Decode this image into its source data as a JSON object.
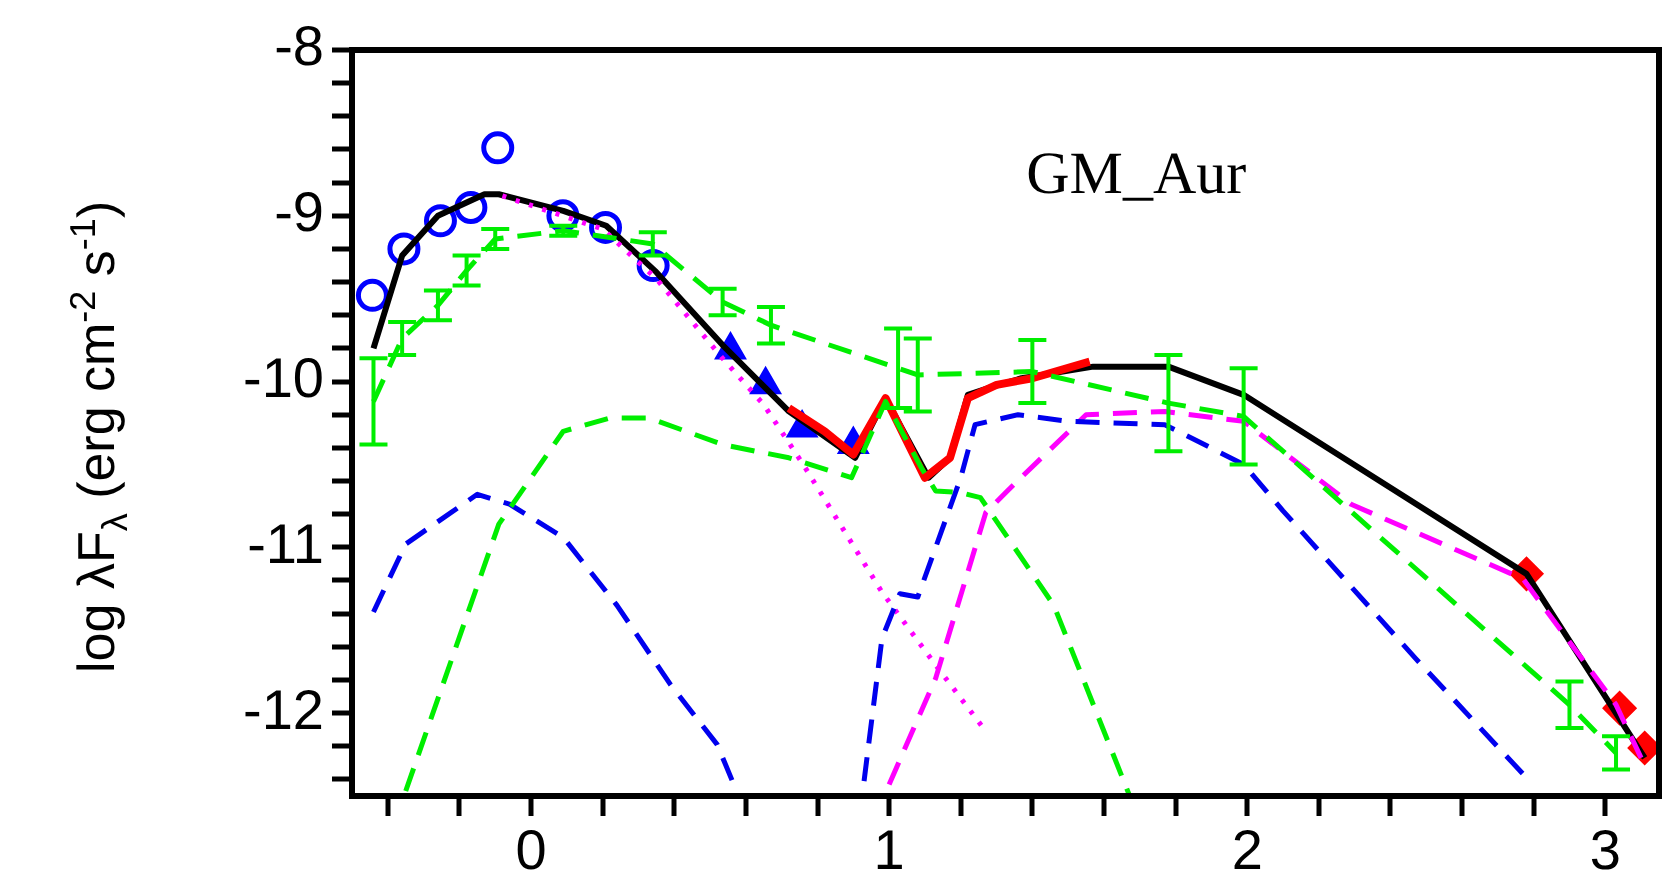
{
  "chart_data": {
    "type": "line",
    "ylabel": "log λF$_{λ}$ (erg cm$^{-2}$ s$^{-1}$)",
    "annotations": [
      "GM_Aur"
    ],
    "legend": false,
    "xlim": [
      -0.5,
      3.15
    ],
    "ylim": [
      -12.5,
      -8
    ],
    "xticks": [
      {
        "value": -0.4,
        "label": null
      },
      {
        "value": -0.2,
        "label": null
      },
      0,
      {
        "value": 0.2,
        "label": null
      },
      {
        "value": 0.4,
        "label": null
      },
      {
        "value": 0.6,
        "label": null
      },
      {
        "value": 0.8,
        "label": null
      },
      1,
      {
        "value": 1.2,
        "label": null
      },
      {
        "value": 1.4,
        "label": null
      },
      {
        "value": 1.6,
        "label": null
      },
      {
        "value": 1.8,
        "label": null
      },
      2,
      {
        "value": 2.2,
        "label": null
      },
      {
        "value": 2.4,
        "label": null
      },
      {
        "value": 2.6,
        "label": null
      },
      {
        "value": 2.8,
        "label": null
      },
      3
    ],
    "yticks": [
      {
        "value": -12.4,
        "label": null
      },
      {
        "value": -12.2,
        "label": null
      },
      -12,
      {
        "value": -11.8,
        "label": null
      },
      {
        "value": -11.6,
        "label": null
      },
      {
        "value": -11.4,
        "label": null
      },
      {
        "value": -11.2,
        "label": null
      },
      -11,
      {
        "value": -10.8,
        "label": null
      },
      {
        "value": -10.6,
        "label": null
      },
      {
        "value": -10.4,
        "label": null
      },
      {
        "value": -10.2,
        "label": null
      },
      -10,
      {
        "value": -9.8,
        "label": null
      },
      {
        "value": -9.6,
        "label": null
      },
      {
        "value": -9.4,
        "label": null
      },
      {
        "value": -9.2,
        "label": null
      },
      -9,
      {
        "value": -8.8,
        "label": null
      },
      {
        "value": -8.6,
        "label": null
      },
      {
        "value": -8.4,
        "label": null
      },
      {
        "value": -8.2,
        "label": null
      },
      -8
    ],
    "series": [
      {
        "color": "#00ee00",
        "line_style": "dashed",
        "x": [
          -0.44,
          -0.36,
          -0.26,
          -0.18,
          -0.1,
          0.09,
          0.34,
          0.535,
          0.67,
          1.025,
          1.08,
          1.4,
          1.78,
          1.99,
          2.9,
          3.03
        ],
        "values": [
          -10.12,
          -9.74,
          -9.54,
          -9.33,
          -9.14,
          -9.09,
          -9.17,
          -9.52,
          -9.66,
          -9.92,
          -9.96,
          -9.94,
          -10.13,
          -10.21,
          -11.95,
          -12.24
        ],
        "errors": [
          0.26,
          0.1,
          0.09,
          0.09,
          0.06,
          0.03,
          0.07,
          0.08,
          0.11,
          0.24,
          0.22,
          0.19,
          0.29,
          0.29,
          0.14,
          0.1
        ]
      },
      {
        "color": "#00ee00",
        "line_style": "dashed",
        "marker": "none",
        "x": [
          -0.35,
          -0.09,
          0.09,
          0.22,
          0.33,
          0.535,
          0.72,
          0.895,
          0.99,
          1.09,
          1.13,
          1.2,
          1.255,
          1.46,
          1.67
        ],
        "values": [
          -12.47,
          -10.86,
          -10.3,
          -10.22,
          -10.22,
          -10.38,
          -10.46,
          -10.58,
          -10.12,
          -10.52,
          -10.66,
          -10.67,
          -10.7,
          -11.35,
          -12.49
        ]
      },
      {
        "color": "#0000ee",
        "line_style": "dashed",
        "marker": "none",
        "x": [
          -0.44,
          -0.35,
          -0.15,
          -0.06,
          0.09,
          0.24,
          0.39,
          0.52,
          0.57
        ],
        "values": [
          -11.39,
          -10.98,
          -10.68,
          -10.74,
          -10.94,
          -11.35,
          -11.83,
          -12.19,
          -12.45
        ]
      },
      {
        "color": "#0000ee",
        "line_style": "dashed",
        "marker": "none",
        "x": [
          0.93,
          0.98,
          1.03,
          1.08,
          1.2,
          1.24,
          1.36,
          1.5,
          1.77,
          1.99,
          2.1,
          2.47,
          2.78
        ],
        "values": [
          -12.41,
          -11.55,
          -11.28,
          -11.3,
          -10.58,
          -10.26,
          -10.2,
          -10.24,
          -10.26,
          -10.5,
          -10.78,
          -11.67,
          -12.39
        ]
      },
      {
        "color": "#ff00ff",
        "line_style": "dotted",
        "marker": "none",
        "x": [
          -0.08,
          0.2,
          0.35,
          0.535,
          0.65,
          0.76,
          0.98,
          1.13,
          1.27
        ],
        "values": [
          -8.88,
          -9.08,
          -9.38,
          -9.86,
          -10.14,
          -10.5,
          -11.27,
          -11.71,
          -12.11
        ]
      },
      {
        "color": "#ff00ff",
        "line_style": "dashed",
        "marker": "none",
        "x": [
          1.0,
          1.13,
          1.27,
          1.33,
          1.55,
          1.77,
          1.99,
          2.29,
          2.77,
          3.03,
          3.1
        ],
        "values": [
          -12.43,
          -11.79,
          -10.79,
          -10.66,
          -10.2,
          -10.18,
          -10.24,
          -10.74,
          -11.19,
          -11.95,
          -12.27
        ]
      },
      {
        "color": "#ff0000",
        "line_style": "solid",
        "marker": "none",
        "x": [
          0.72,
          0.82,
          0.9,
          0.99,
          1.1,
          1.17,
          1.22,
          1.3,
          1.4,
          1.56
        ],
        "values": [
          -10.16,
          -10.3,
          -10.44,
          -10.1,
          -10.58,
          -10.46,
          -10.1,
          -10.02,
          -9.98,
          -9.88
        ]
      },
      {
        "color": "#000000",
        "line_style": "solid",
        "marker": "none",
        "x": [
          -0.44,
          -0.36,
          -0.26,
          -0.13,
          -0.09,
          0.09,
          0.21,
          0.35,
          0.535,
          0.72,
          0.905,
          0.99,
          1.11,
          1.17,
          1.22,
          1.29,
          1.37,
          1.57,
          1.78,
          1.99,
          2.78,
          3.11
        ],
        "values": [
          -9.8,
          -9.24,
          -9.0,
          -8.87,
          -8.87,
          -8.97,
          -9.06,
          -9.34,
          -9.78,
          -10.18,
          -10.46,
          -10.1,
          -10.58,
          -10.46,
          -10.08,
          -10.03,
          -9.98,
          -9.91,
          -9.91,
          -10.08,
          -11.16,
          -12.27
        ]
      },
      {
        "type": "scatter",
        "color": "#0000ff",
        "marker": "circle",
        "x": [
          -0.443,
          -0.355,
          -0.253,
          -0.168,
          -0.093
        ],
        "values": [
          -9.48,
          -9.2,
          -9.03,
          -8.95,
          -8.59
        ]
      },
      {
        "type": "scatter",
        "color": "#0000ff",
        "marker": "circle",
        "x": [
          0.089,
          0.208,
          0.341
        ],
        "values": [
          -9.0,
          -9.07,
          -9.3
        ]
      },
      {
        "type": "scatter",
        "color": "#0000ff",
        "marker": "triangle",
        "x": [
          0.557,
          0.655,
          0.757,
          0.9
        ],
        "values": [
          -9.81,
          -10.02,
          -10.28,
          -10.38
        ]
      },
      {
        "type": "scatter",
        "color": "#ff0000",
        "marker": "diamond",
        "x": [
          2.78,
          3.04,
          3.11
        ],
        "values": [
          -11.16,
          -11.97,
          -12.21
        ]
      }
    ]
  }
}
